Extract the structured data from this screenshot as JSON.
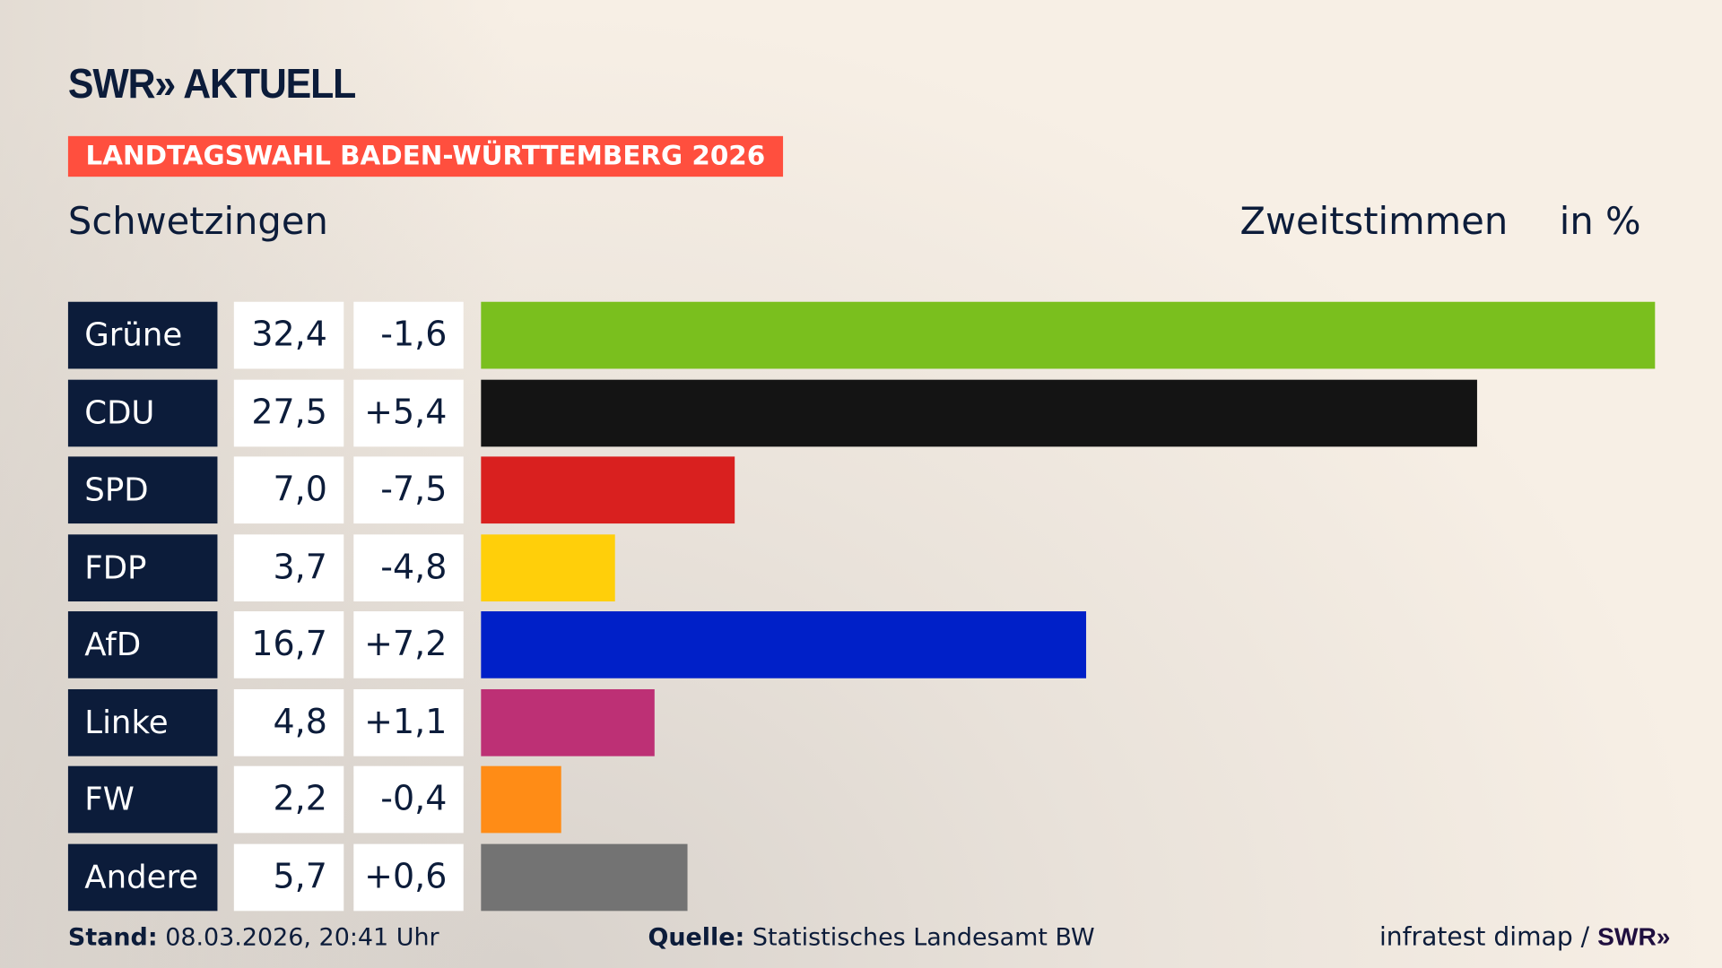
{
  "header": {
    "logo": "SWR» AKTUELL",
    "banner": "LANDTAGSWAHL BADEN-WÜRTTEMBERG 2026",
    "district": "Schwetzingen",
    "vote_type": "Zweitstimmen",
    "unit": "in %"
  },
  "chart_data": {
    "type": "bar",
    "orientation": "horizontal",
    "categories": [
      "Grüne",
      "CDU",
      "SPD",
      "FDP",
      "AfD",
      "Linke",
      "FW",
      "Andere"
    ],
    "values": [
      32.4,
      27.5,
      7.0,
      3.7,
      16.7,
      4.8,
      2.2,
      5.7
    ],
    "value_labels": [
      "32,4",
      "27,5",
      "7,0",
      "3,7",
      "16,7",
      "4,8",
      "2,2",
      "5,7"
    ],
    "change_labels": [
      "-1,6",
      "+5,4",
      "-7,5",
      "-4,8",
      "+7,2",
      "+1,1",
      "-0,4",
      "+0,6"
    ],
    "changes": [
      -1.6,
      5.4,
      -7.5,
      -4.8,
      7.2,
      1.1,
      -0.4,
      0.6
    ],
    "colors": [
      "#7abf1e",
      "#141414",
      "#d9201f",
      "#ffcf0a",
      "#0020c8",
      "#bd3075",
      "#ff8c16",
      "#737373"
    ],
    "unit": "in %",
    "grid": false
  },
  "footer": {
    "stand_label": "Stand:",
    "stand_value": "08.03.2026, 20:41 Uhr",
    "source_label": "Quelle:",
    "source_value": "Statistisches Landesamt BW",
    "credit": "infratest dimap /",
    "credit_logo": "SWR»"
  }
}
